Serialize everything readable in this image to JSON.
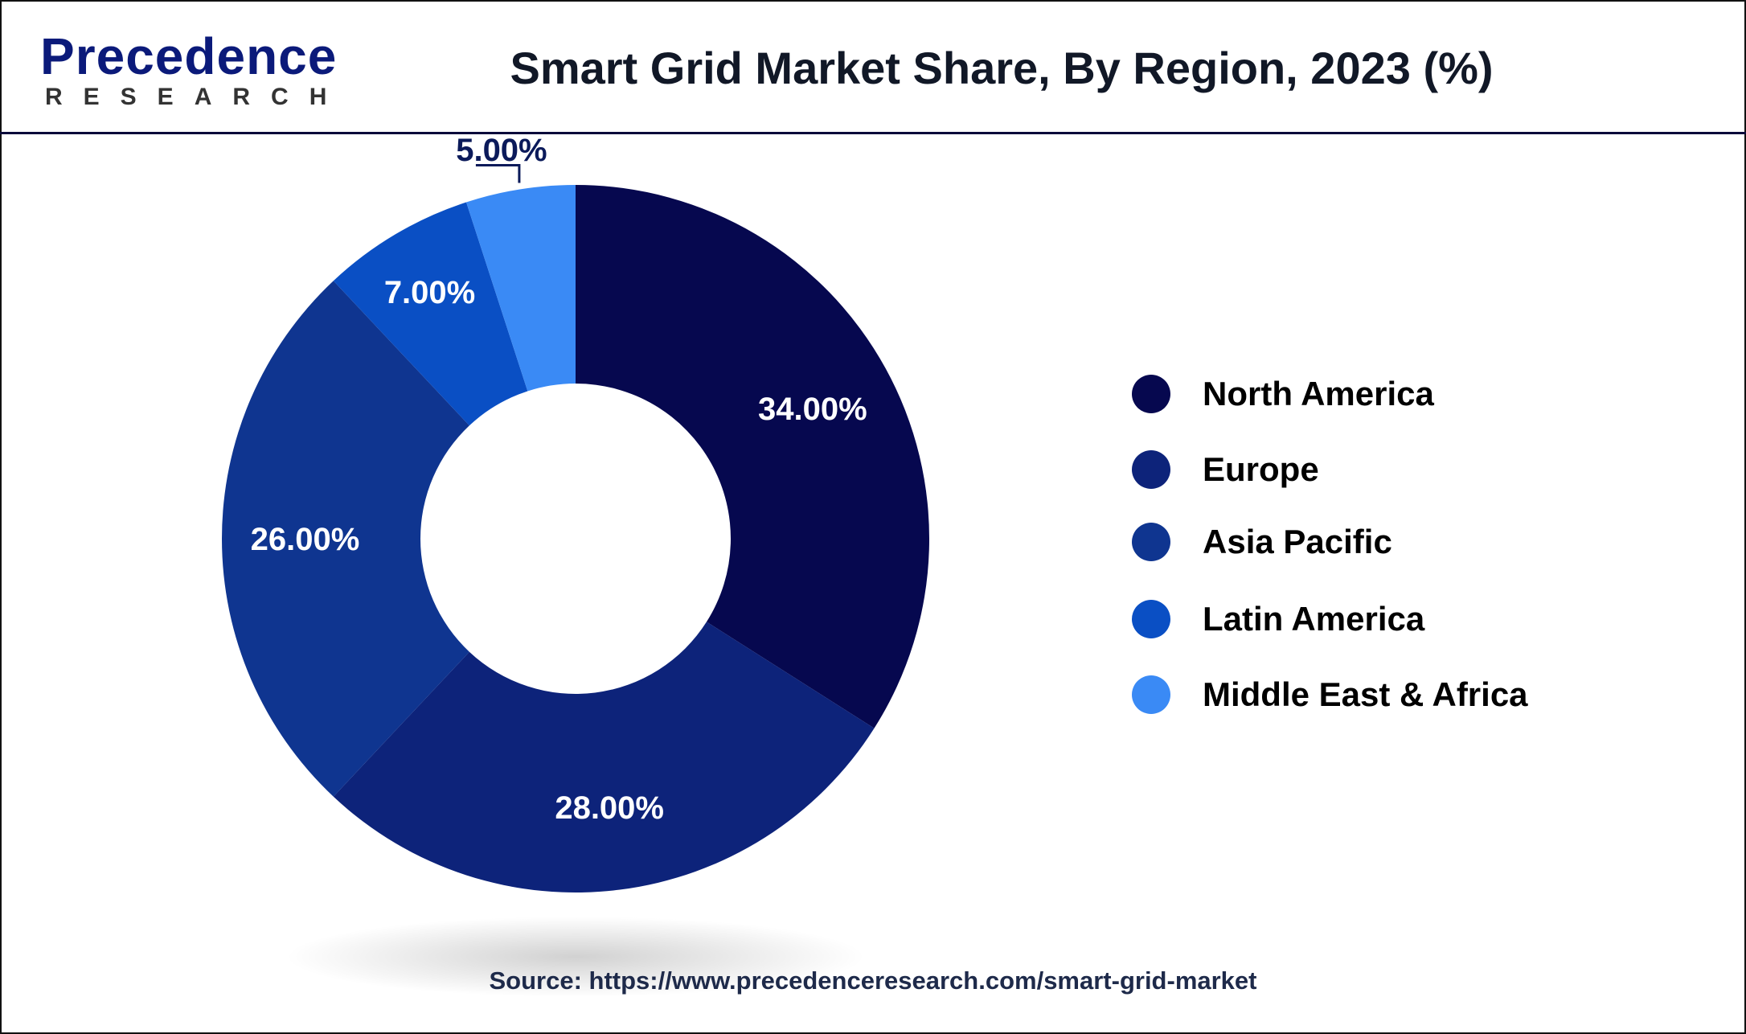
{
  "header": {
    "logo_top": "Precedence",
    "logo_bottom": "RESEARCH",
    "title": "Smart Grid Market  Share, By Region, 2023 (%)"
  },
  "chart_data": {
    "type": "pie",
    "donut": true,
    "title": "Smart Grid Market  Share, By Region, 2023 (%)",
    "categories": [
      "North America",
      "Europe",
      "Asia Pacific",
      "Latin America",
      "Middle East & Africa"
    ],
    "values": [
      34,
      28,
      26,
      7,
      5
    ],
    "data_labels": [
      "34.00%",
      "28.00%",
      "26.00%",
      "7.00%",
      "5.00%"
    ],
    "colors": [
      "#06084f",
      "#0d237a",
      "#0f3590",
      "#0a4fc4",
      "#3a8af5"
    ],
    "legend_position": "right",
    "start_angle": "top, clockwise"
  },
  "source": "Source: https://www.precedenceresearch.com/smart-grid-market"
}
